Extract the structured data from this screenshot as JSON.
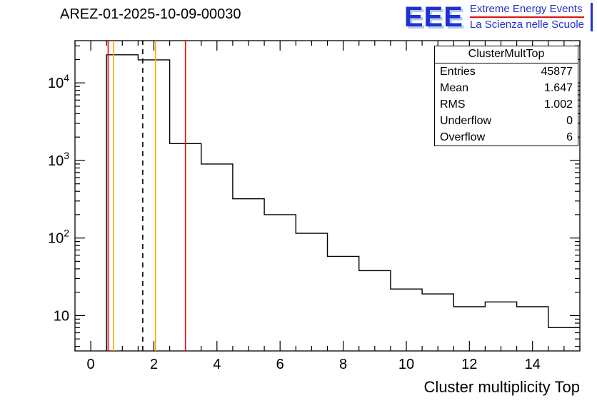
{
  "header": {
    "title": "AREZ-01-2025-10-09-00030"
  },
  "logo": {
    "acronym": "EEE",
    "line1": "Extreme Energy Events",
    "line2": "La Scienza nelle Scuole",
    "text_color": "#2230cc",
    "shadow_color": "#aecbf0",
    "divider_color": "#e01010"
  },
  "stats_box": {
    "title": "ClusterMultTop",
    "rows": [
      {
        "label": "Entries",
        "value": "45877"
      },
      {
        "label": "Mean",
        "value": "1.647"
      },
      {
        "label": "RMS",
        "value": "1.002"
      },
      {
        "label": "Underflow",
        "value": "0"
      },
      {
        "label": "Overflow",
        "value": "6"
      }
    ]
  },
  "chart_data": {
    "type": "bar",
    "subtype": "step-histogram-logy",
    "title": "AREZ-01-2025-10-09-00030",
    "xlabel": "Cluster multiplicity Top",
    "ylabel": "",
    "xlim": [
      -0.5,
      15.5
    ],
    "ylog": true,
    "ylim": [
      3.5,
      35000
    ],
    "bin_edges": [
      0.5,
      1.5,
      2.5,
      3.5,
      4.5,
      5.5,
      6.5,
      7.5,
      8.5,
      9.5,
      10.5,
      11.5,
      12.5,
      13.5,
      14.5,
      15.5
    ],
    "counts": [
      23000,
      19800,
      1650,
      900,
      320,
      200,
      115,
      58,
      38,
      22,
      19,
      13,
      15,
      13,
      7
    ],
    "x_major_ticks": [
      0,
      2,
      4,
      6,
      8,
      10,
      12,
      14
    ],
    "x_minor_step": 0.5,
    "y_ticks": [
      {
        "value": 10,
        "label": "10"
      },
      {
        "value": 100,
        "label": "10^2"
      },
      {
        "value": 1000,
        "label": "10^3"
      },
      {
        "value": 10000,
        "label": "10^4"
      }
    ],
    "line_color": "#000000",
    "grid": false,
    "legend": false,
    "marker_lines": [
      {
        "x": 0.55,
        "color": "#ff0000",
        "style": "solid"
      },
      {
        "x": 0.72,
        "color": "#ffaa00",
        "style": "solid"
      },
      {
        "x": 1.647,
        "color": "#000000",
        "style": "dashed"
      },
      {
        "x": 2.05,
        "color": "#ffaa00",
        "style": "solid"
      },
      {
        "x": 3.0,
        "color": "#ff0000",
        "style": "solid"
      }
    ]
  }
}
